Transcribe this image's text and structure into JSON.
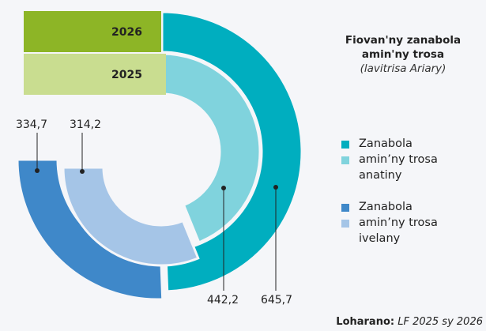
{
  "chart_data": {
    "type": "donut",
    "title": "Fiovan'ny zanabola amin'ny trosa",
    "subtitle": "(lavitrisa Ariary)",
    "categories": [
      "Zanabola amin’ny trosa anatiny",
      "Zanabola amin’ny trosa ivelany"
    ],
    "series": [
      {
        "name": "2026",
        "color": "#8db526",
        "colors": [
          "#00aebf",
          "#3f88c9"
        ],
        "values": [
          645.7,
          334.7
        ],
        "value_labels": [
          "645,7",
          "334,7"
        ]
      },
      {
        "name": "2025",
        "color": "#c9dd90",
        "colors": [
          "#80d3dd",
          "#a5c5e7"
        ],
        "values": [
          442.2,
          314.2
        ],
        "value_labels": [
          "442,2",
          "314,2"
        ]
      }
    ],
    "source_label": "Loharano:",
    "source": "LF 2025 sy 2026"
  }
}
